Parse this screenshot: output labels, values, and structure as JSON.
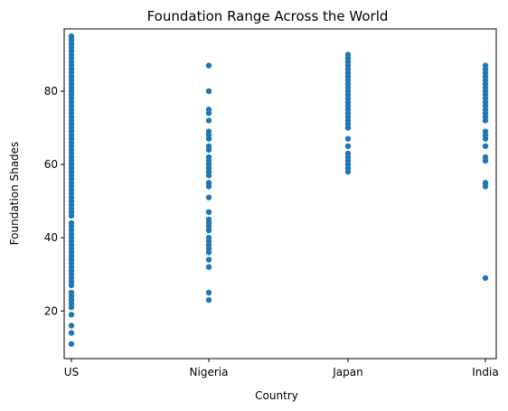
{
  "chart_data": {
    "type": "scatter",
    "title": "Foundation Range Across the World",
    "xlabel": "Country",
    "ylabel": "Foundation Shades",
    "categories": [
      "US",
      "Nigeria",
      "Japan",
      "India"
    ],
    "ylim": [
      7,
      97
    ],
    "yticks": [
      20,
      40,
      60,
      80
    ],
    "grid": false,
    "marker_color": "#1f77b4",
    "series": [
      {
        "category": "US",
        "values": [
          11,
          14,
          16,
          19,
          21,
          22,
          23,
          24,
          25,
          27,
          28,
          29,
          30,
          31,
          32,
          33,
          34,
          35,
          36,
          37,
          38,
          39,
          40,
          41,
          42,
          43,
          44,
          46,
          47,
          48,
          49,
          50,
          51,
          52,
          53,
          54,
          55,
          56,
          57,
          58,
          59,
          60,
          61,
          62,
          63,
          64,
          65,
          66,
          67,
          68,
          69,
          70,
          71,
          72,
          73,
          74,
          75,
          76,
          77,
          78,
          79,
          80,
          81,
          82,
          83,
          84,
          85,
          86,
          87,
          88,
          89,
          90,
          91,
          92,
          93,
          94,
          95
        ]
      },
      {
        "category": "Nigeria",
        "values": [
          23,
          25,
          32,
          34,
          36,
          37,
          38,
          39,
          40,
          42,
          43,
          44,
          45,
          47,
          51,
          54,
          55,
          57,
          58,
          59,
          60,
          61,
          62,
          64,
          65,
          67,
          68,
          69,
          72,
          74,
          75,
          80,
          87
        ]
      },
      {
        "category": "Japan",
        "values": [
          58,
          59,
          60,
          61,
          62,
          63,
          65,
          67,
          70,
          71,
          72,
          73,
          74,
          75,
          76,
          77,
          78,
          79,
          80,
          81,
          82,
          83,
          84,
          85,
          86,
          87,
          88,
          89,
          90
        ]
      },
      {
        "category": "India",
        "values": [
          29,
          54,
          55,
          61,
          62,
          65,
          67,
          68,
          69,
          72,
          73,
          74,
          75,
          76,
          77,
          78,
          79,
          80,
          81,
          82,
          83,
          84,
          85,
          86,
          87
        ]
      }
    ]
  }
}
